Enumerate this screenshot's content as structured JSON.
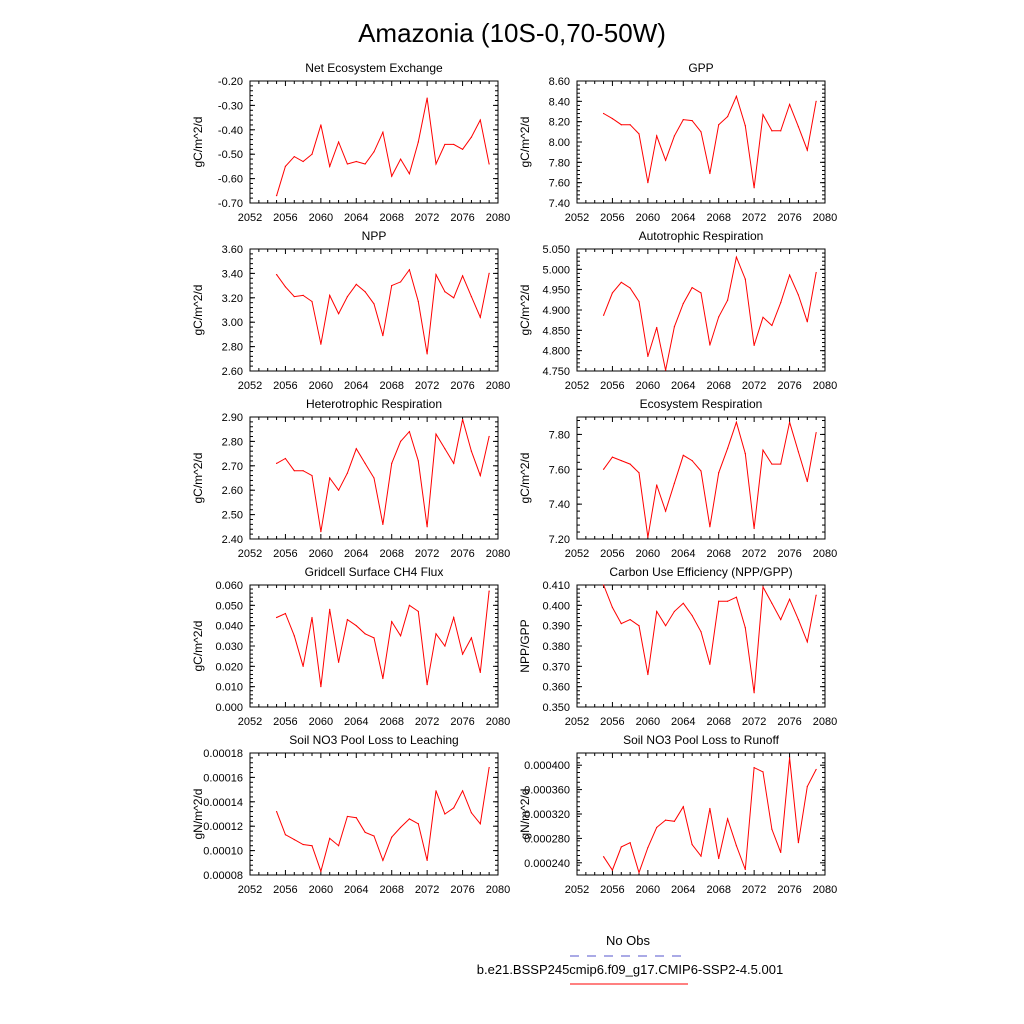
{
  "figure": {
    "title": "Amazonia (10S-0,70-50W)"
  },
  "legend": {
    "obs_label": "No Obs",
    "obs_color": "#5555cc",
    "model_label": "b.e21.BSSP245cmip6.f09_g17.CMIP6-SSP2-4.5.001",
    "model_color": "#ff0000"
  },
  "chart_data": [
    {
      "type": "line",
      "title": "Net Ecosystem Exchange",
      "ylabel": "gC/m^2/d",
      "xlim": [
        2052,
        2080
      ],
      "ylim": [
        -0.7,
        -0.2
      ],
      "xticks": [
        "2052",
        "2056",
        "2060",
        "2064",
        "2068",
        "2072",
        "2076",
        "2080"
      ],
      "yticks": [
        "-0.70",
        "-0.60",
        "-0.50",
        "-0.40",
        "-0.30",
        "-0.20"
      ],
      "series": [
        {
          "color": "#ff0000",
          "x": [
            2055,
            2056,
            2057,
            2058,
            2059,
            2060,
            2061,
            2062,
            2063,
            2064,
            2065,
            2066,
            2067,
            2068,
            2069,
            2070,
            2071,
            2072,
            2073,
            2074,
            2075,
            2076,
            2077,
            2078,
            2079
          ],
          "values": [
            -0.67,
            -0.55,
            -0.51,
            -0.53,
            -0.5,
            -0.38,
            -0.55,
            -0.45,
            -0.54,
            -0.53,
            -0.54,
            -0.49,
            -0.41,
            -0.59,
            -0.52,
            -0.58,
            -0.45,
            -0.27,
            -0.54,
            -0.46,
            -0.46,
            -0.48,
            -0.43,
            -0.36,
            -0.54
          ]
        }
      ]
    },
    {
      "type": "line",
      "title": "GPP",
      "ylabel": "gC/m^2/d",
      "xlim": [
        2052,
        2080
      ],
      "ylim": [
        7.4,
        8.6
      ],
      "xticks": [
        "2052",
        "2056",
        "2060",
        "2064",
        "2068",
        "2072",
        "2076",
        "2080"
      ],
      "yticks": [
        "7.40",
        "7.60",
        "7.80",
        "8.00",
        "8.20",
        "8.40",
        "8.60"
      ],
      "series": [
        {
          "color": "#ff0000",
          "x": [
            2055,
            2056,
            2057,
            2058,
            2059,
            2060,
            2061,
            2062,
            2063,
            2064,
            2065,
            2066,
            2067,
            2068,
            2069,
            2070,
            2071,
            2072,
            2073,
            2074,
            2075,
            2076,
            2077,
            2078,
            2079
          ],
          "values": [
            8.28,
            8.23,
            8.17,
            8.17,
            8.08,
            7.6,
            8.06,
            7.82,
            8.06,
            8.22,
            8.21,
            8.1,
            7.69,
            8.17,
            8.25,
            8.45,
            8.16,
            7.55,
            8.27,
            8.11,
            8.11,
            8.37,
            8.15,
            7.92,
            8.4
          ]
        }
      ]
    },
    {
      "type": "line",
      "title": "NPP",
      "ylabel": "gC/m^2/d",
      "xlim": [
        2052,
        2080
      ],
      "ylim": [
        2.6,
        3.6
      ],
      "xticks": [
        "2052",
        "2056",
        "2060",
        "2064",
        "2068",
        "2072",
        "2076",
        "2080"
      ],
      "yticks": [
        "2.60",
        "2.80",
        "3.00",
        "3.20",
        "3.40",
        "3.60"
      ],
      "series": [
        {
          "color": "#ff0000",
          "x": [
            2055,
            2056,
            2057,
            2058,
            2059,
            2060,
            2061,
            2062,
            2063,
            2064,
            2065,
            2066,
            2067,
            2068,
            2069,
            2070,
            2071,
            2072,
            2073,
            2074,
            2075,
            2076,
            2077,
            2078,
            2079
          ],
          "values": [
            3.39,
            3.29,
            3.21,
            3.22,
            3.17,
            2.82,
            3.22,
            3.07,
            3.21,
            3.31,
            3.25,
            3.15,
            2.89,
            3.3,
            3.33,
            3.43,
            3.17,
            2.74,
            3.39,
            3.25,
            3.2,
            3.38,
            3.21,
            3.04,
            3.4
          ]
        }
      ]
    },
    {
      "type": "line",
      "title": "Autotrophic Respiration",
      "ylabel": "gC/m^2/d",
      "xlim": [
        2052,
        2080
      ],
      "ylim": [
        4.75,
        5.05
      ],
      "xticks": [
        "2052",
        "2056",
        "2060",
        "2064",
        "2068",
        "2072",
        "2076",
        "2080"
      ],
      "yticks": [
        "4.750",
        "4.800",
        "4.850",
        "4.900",
        "4.950",
        "5.000",
        "5.050"
      ],
      "series": [
        {
          "color": "#ff0000",
          "x": [
            2055,
            2056,
            2057,
            2058,
            2059,
            2060,
            2061,
            2062,
            2063,
            2064,
            2065,
            2066,
            2067,
            2068,
            2069,
            2070,
            2071,
            2072,
            2073,
            2074,
            2075,
            2076,
            2077,
            2078,
            2079
          ],
          "values": [
            4.887,
            4.942,
            4.968,
            4.954,
            4.921,
            4.786,
            4.857,
            4.752,
            4.859,
            4.916,
            4.955,
            4.942,
            4.814,
            4.883,
            4.924,
            5.03,
            4.976,
            4.813,
            4.882,
            4.862,
            4.918,
            4.986,
            4.937,
            4.871,
            4.992
          ]
        }
      ]
    },
    {
      "type": "line",
      "title": "Heterotrophic Respiration",
      "ylabel": "gC/m^2/d",
      "xlim": [
        2052,
        2080
      ],
      "ylim": [
        2.4,
        2.9
      ],
      "xticks": [
        "2052",
        "2056",
        "2060",
        "2064",
        "2068",
        "2072",
        "2076",
        "2080"
      ],
      "yticks": [
        "2.40",
        "2.50",
        "2.60",
        "2.70",
        "2.80",
        "2.90"
      ],
      "series": [
        {
          "color": "#ff0000",
          "x": [
            2055,
            2056,
            2057,
            2058,
            2059,
            2060,
            2061,
            2062,
            2063,
            2064,
            2065,
            2066,
            2067,
            2068,
            2069,
            2070,
            2071,
            2072,
            2073,
            2074,
            2075,
            2076,
            2077,
            2078,
            2079
          ],
          "values": [
            2.71,
            2.73,
            2.68,
            2.68,
            2.66,
            2.43,
            2.65,
            2.6,
            2.67,
            2.77,
            2.71,
            2.65,
            2.46,
            2.71,
            2.8,
            2.84,
            2.72,
            2.45,
            2.83,
            2.77,
            2.71,
            2.89,
            2.76,
            2.66,
            2.82
          ]
        }
      ]
    },
    {
      "type": "line",
      "title": "Ecosystem Respiration",
      "ylabel": "gC/m^2/d",
      "xlim": [
        2052,
        2080
      ],
      "ylim": [
        7.2,
        7.9
      ],
      "xticks": [
        "2052",
        "2056",
        "2060",
        "2064",
        "2068",
        "2072",
        "2076",
        "2080"
      ],
      "yticks": [
        "7.20",
        "7.40",
        "7.60",
        "7.80"
      ],
      "series": [
        {
          "color": "#ff0000",
          "x": [
            2055,
            2056,
            2057,
            2058,
            2059,
            2060,
            2061,
            2062,
            2063,
            2064,
            2065,
            2066,
            2067,
            2068,
            2069,
            2070,
            2071,
            2072,
            2073,
            2074,
            2075,
            2076,
            2077,
            2078,
            2079
          ],
          "values": [
            7.6,
            7.67,
            7.65,
            7.63,
            7.58,
            7.21,
            7.51,
            7.36,
            7.52,
            7.68,
            7.65,
            7.59,
            7.27,
            7.58,
            7.72,
            7.87,
            7.69,
            7.26,
            7.71,
            7.63,
            7.63,
            7.87,
            7.7,
            7.53,
            7.81
          ]
        }
      ]
    },
    {
      "type": "line",
      "title": "Gridcell Surface CH4 Flux",
      "ylabel": "gC/m^2/d",
      "xlim": [
        2052,
        2080
      ],
      "ylim": [
        0.0,
        0.06
      ],
      "xticks": [
        "2052",
        "2056",
        "2060",
        "2064",
        "2068",
        "2072",
        "2076",
        "2080"
      ],
      "yticks": [
        "0.000",
        "0.010",
        "0.020",
        "0.030",
        "0.040",
        "0.050",
        "0.060"
      ],
      "series": [
        {
          "color": "#ff0000",
          "x": [
            2055,
            2056,
            2057,
            2058,
            2059,
            2060,
            2061,
            2062,
            2063,
            2064,
            2065,
            2066,
            2067,
            2068,
            2069,
            2070,
            2071,
            2072,
            2073,
            2074,
            2075,
            2076,
            2077,
            2078,
            2079
          ],
          "values": [
            0.044,
            0.046,
            0.035,
            0.02,
            0.044,
            0.01,
            0.048,
            0.022,
            0.043,
            0.04,
            0.036,
            0.034,
            0.014,
            0.042,
            0.035,
            0.05,
            0.047,
            0.011,
            0.036,
            0.03,
            0.044,
            0.026,
            0.034,
            0.017,
            0.057
          ]
        }
      ]
    },
    {
      "type": "line",
      "title": "Carbon Use Efficiency (NPP/GPP)",
      "ylabel": "NPP/GPP",
      "xlim": [
        2052,
        2080
      ],
      "ylim": [
        0.35,
        0.41
      ],
      "xticks": [
        "2052",
        "2056",
        "2060",
        "2064",
        "2068",
        "2072",
        "2076",
        "2080"
      ],
      "yticks": [
        "0.350",
        "0.360",
        "0.370",
        "0.380",
        "0.390",
        "0.400",
        "0.410"
      ],
      "series": [
        {
          "color": "#ff0000",
          "x": [
            2055,
            2056,
            2057,
            2058,
            2059,
            2060,
            2061,
            2062,
            2063,
            2064,
            2065,
            2066,
            2067,
            2068,
            2069,
            2070,
            2071,
            2072,
            2073,
            2074,
            2075,
            2076,
            2077,
            2078,
            2079
          ],
          "values": [
            0.41,
            0.399,
            0.391,
            0.393,
            0.39,
            0.366,
            0.397,
            0.39,
            0.397,
            0.401,
            0.395,
            0.387,
            0.371,
            0.402,
            0.402,
            0.404,
            0.389,
            0.357,
            0.409,
            0.401,
            0.393,
            0.403,
            0.393,
            0.382,
            0.405
          ]
        }
      ]
    },
    {
      "type": "line",
      "title": "Soil NO3 Pool Loss to Leaching",
      "ylabel": "gN/m^2/d",
      "xlim": [
        2052,
        2080
      ],
      "ylim": [
        8e-05,
        0.00018
      ],
      "xticks": [
        "2052",
        "2056",
        "2060",
        "2064",
        "2068",
        "2072",
        "2076",
        "2080"
      ],
      "yticks": [
        "0.00008",
        "0.00010",
        "0.00012",
        "0.00014",
        "0.00016",
        "0.00018"
      ],
      "series": [
        {
          "color": "#ff0000",
          "x": [
            2055,
            2056,
            2057,
            2058,
            2059,
            2060,
            2061,
            2062,
            2063,
            2064,
            2065,
            2066,
            2067,
            2068,
            2069,
            2070,
            2071,
            2072,
            2073,
            2074,
            2075,
            2076,
            2077,
            2078,
            2079
          ],
          "values": [
            0.000132,
            0.000113,
            0.000109,
            0.000105,
            0.000104,
            8.3e-05,
            0.00011,
            0.000104,
            0.000128,
            0.000127,
            0.000115,
            0.000112,
            9.2e-05,
            0.000111,
            0.000119,
            0.000126,
            0.000122,
            9.2e-05,
            0.000149,
            0.00013,
            0.000135,
            0.000149,
            0.000131,
            0.000122,
            0.000168
          ]
        }
      ]
    },
    {
      "type": "line",
      "title": "Soil NO3 Pool Loss to Runoff",
      "ylabel": "gN/m^2/d",
      "xlim": [
        2052,
        2080
      ],
      "ylim": [
        0.00022,
        0.00042
      ],
      "xticks": [
        "2052",
        "2056",
        "2060",
        "2064",
        "2068",
        "2072",
        "2076",
        "2080"
      ],
      "yticks": [
        "0.000240",
        "0.000280",
        "0.000320",
        "0.000360",
        "0.000400"
      ],
      "series": [
        {
          "color": "#ff0000",
          "x": [
            2055,
            2056,
            2057,
            2058,
            2059,
            2060,
            2061,
            2062,
            2063,
            2064,
            2065,
            2066,
            2067,
            2068,
            2069,
            2070,
            2071,
            2072,
            2073,
            2074,
            2075,
            2076,
            2077,
            2078,
            2079
          ],
          "values": [
            0.00025,
            0.000228,
            0.000266,
            0.000273,
            0.000224,
            0.000265,
            0.000298,
            0.00031,
            0.000308,
            0.000332,
            0.00027,
            0.000251,
            0.000329,
            0.000247,
            0.000312,
            0.000268,
            0.000229,
            0.000396,
            0.000389,
            0.000295,
            0.000257,
            0.000412,
            0.000273,
            0.000365,
            0.000393
          ]
        }
      ]
    }
  ]
}
